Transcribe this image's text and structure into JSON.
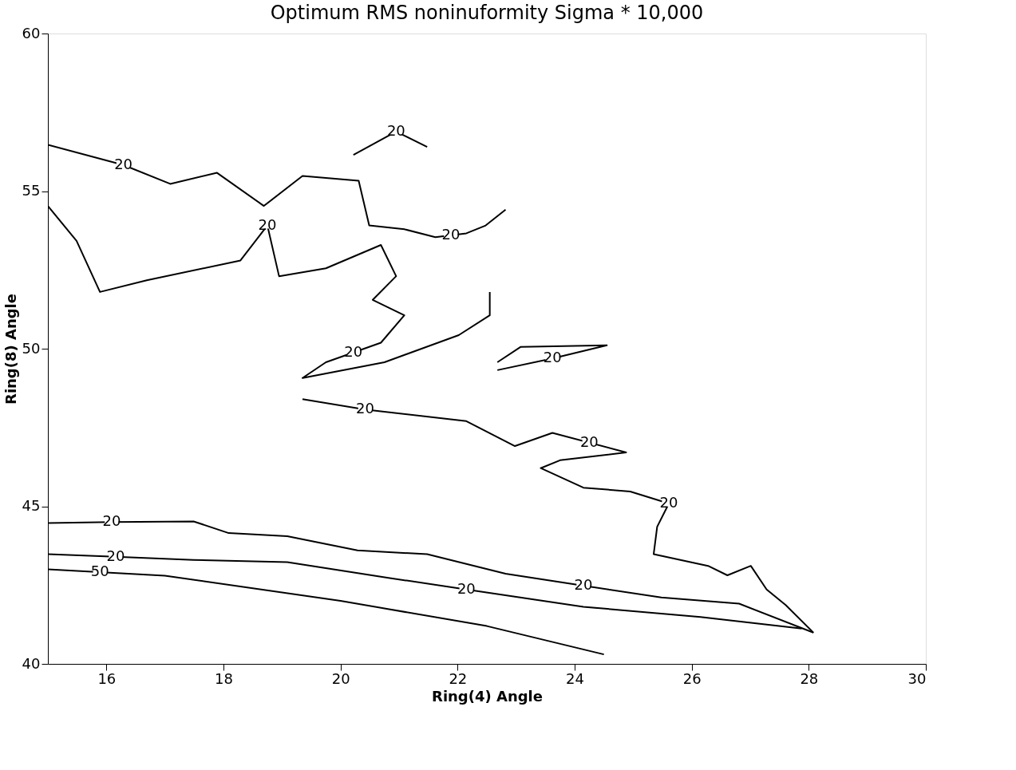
{
  "chart_data": {
    "type": "line",
    "title": "Optimum RMS noninuformity    Sigma * 10,000",
    "xlabel": "Ring(4) Angle",
    "ylabel": "Ring(8) Angle",
    "xlim": [
      15,
      30
    ],
    "ylim": [
      40,
      60
    ],
    "xticks": [
      16,
      18,
      20,
      22,
      24,
      26,
      28,
      30
    ],
    "yticks": [
      40,
      45,
      50,
      55,
      60
    ],
    "grid": false,
    "legend": false,
    "marker": "none",
    "line_style": "solid",
    "series": [
      {
        "color": "#000000",
        "x": [
          15,
          17,
          20,
          22.5,
          24.5
        ],
        "values": [
          43.0,
          42.8,
          42.0,
          41.2,
          40.3
        ]
      },
      {
        "color": "#000000",
        "x": [
          19.35,
          20.42,
          22.15,
          22.98,
          23.62,
          24.88,
          23.75,
          23.42,
          24.15,
          24.95,
          25.61,
          25.41,
          25.35,
          26.28,
          26.61,
          27.01,
          27.28,
          27.61,
          28.08
        ],
        "values": [
          48.4,
          48.07,
          47.7,
          46.91,
          47.33,
          46.71,
          46.46,
          46.21,
          45.59,
          45.47,
          45.09,
          44.35,
          43.48,
          43.11,
          42.81,
          43.11,
          42.36,
          41.86,
          40.99
        ]
      },
      {
        "color": "#000000",
        "x": [
          15,
          16.09,
          17.49,
          18.09,
          19.09,
          20.29,
          21.48,
          22.82,
          24.15,
          25.48,
          26.81,
          28.08
        ],
        "values": [
          44.47,
          44.5,
          44.52,
          44.15,
          44.05,
          43.6,
          43.48,
          42.86,
          42.48,
          42.11,
          41.91,
          40.99
        ]
      },
      {
        "color": "#000000",
        "x": [
          15,
          16.16,
          17.49,
          19.09,
          20.82,
          22.15,
          24.15,
          26.15,
          27.88
        ],
        "values": [
          43.48,
          43.4,
          43.3,
          43.23,
          42.73,
          42.36,
          41.81,
          41.49,
          41.12
        ]
      },
      {
        "color": "#000000",
        "x": [
          15,
          16.29,
          17.09,
          17.89,
          18.69,
          19.35,
          20.31,
          20.49,
          21.09,
          21.62,
          22.15,
          22.48,
          22.82
        ],
        "values": [
          56.47,
          55.83,
          55.23,
          55.58,
          54.53,
          55.48,
          55.33,
          53.91,
          53.79,
          53.54,
          53.66,
          53.91,
          54.41
        ]
      },
      {
        "color": "#000000",
        "x": [
          15,
          15.49,
          15.89,
          16.69,
          18.29,
          18.75,
          18.95,
          19.75,
          20.69,
          20.95,
          20.55,
          21.09,
          20.69,
          19.75,
          19.35,
          20.75,
          22.02,
          22.55,
          22.55
        ],
        "values": [
          54.53,
          53.42,
          51.8,
          52.17,
          52.8,
          53.91,
          52.3,
          52.55,
          53.29,
          52.3,
          51.55,
          51.06,
          50.19,
          49.57,
          49.07,
          49.57,
          50.43,
          51.06,
          51.8
        ]
      },
      {
        "color": "#000000",
        "x": [
          22.68,
          23.08,
          24.55,
          23.62,
          22.68
        ],
        "values": [
          49.57,
          50.06,
          50.11,
          49.69,
          49.32
        ]
      },
      {
        "color": "#000000",
        "x": [
          20.22,
          20.95,
          21.48
        ],
        "values": [
          56.15,
          56.89,
          56.4
        ]
      }
    ],
    "annotations": [
      {
        "text": "20",
        "x": 20.95,
        "y": 56.89
      },
      {
        "text": "20",
        "x": 16.29,
        "y": 55.83
      },
      {
        "text": "20",
        "x": 18.75,
        "y": 53.91
      },
      {
        "text": "20",
        "x": 20.22,
        "y": 49.88
      },
      {
        "text": "20",
        "x": 20.42,
        "y": 48.07
      },
      {
        "text": "20",
        "x": 23.62,
        "y": 49.69
      },
      {
        "text": "20",
        "x": 24.25,
        "y": 47.02
      },
      {
        "text": "20",
        "x": 21.885,
        "y": 53.6
      },
      {
        "text": "20",
        "x": 25.61,
        "y": 45.09
      },
      {
        "text": "20",
        "x": 16.09,
        "y": 44.5
      },
      {
        "text": "20",
        "x": 16.16,
        "y": 43.4
      },
      {
        "text": "20",
        "x": 22.15,
        "y": 42.36
      },
      {
        "text": "20",
        "x": 24.15,
        "y": 42.48
      },
      {
        "text": "50",
        "x": 15.89,
        "y": 42.91
      }
    ]
  }
}
